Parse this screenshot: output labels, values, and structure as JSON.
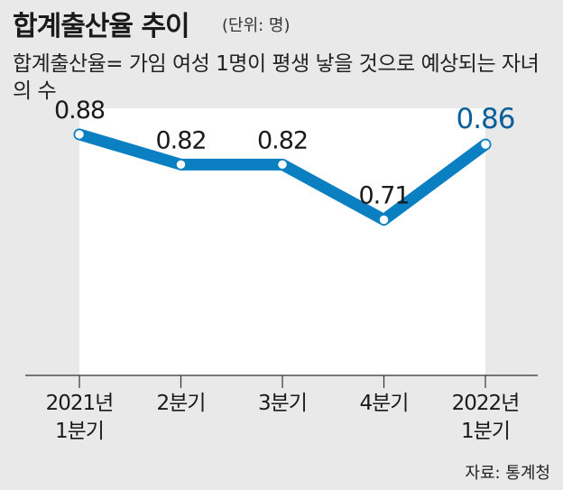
{
  "header": {
    "title": "합계출산율 추이",
    "unit": "(단위: 명)",
    "subtitle": "합계출산율= 가임 여성 1명이 평생 낳을 것으로 예상되는 자녀의 수"
  },
  "footer": {
    "source": "자료: 통계청"
  },
  "colors": {
    "line": "#0a7fc1",
    "highlight": "#0a5f9a",
    "band": "#ffffff"
  },
  "chart_data": {
    "type": "line",
    "categories": [
      [
        "2021년",
        "1분기"
      ],
      [
        "2분기"
      ],
      [
        "3분기"
      ],
      [
        "4분기"
      ],
      [
        "2022년",
        "1분기"
      ]
    ],
    "values": [
      0.88,
      0.82,
      0.82,
      0.71,
      0.86
    ],
    "data_labels": [
      "0.88",
      "0.82",
      "0.82",
      "0.71",
      "0.86"
    ],
    "highlight_index": 4,
    "ylim": [
      0.4,
      0.95
    ],
    "grid": false
  }
}
